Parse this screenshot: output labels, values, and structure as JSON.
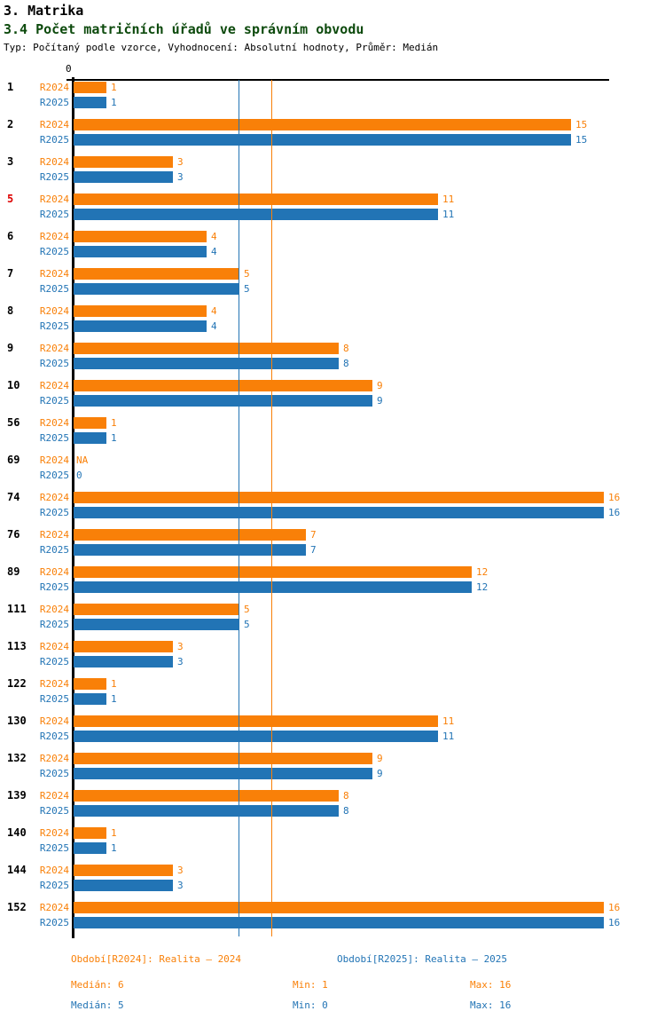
{
  "header": {
    "title": "3. Matrika",
    "subtitle": "3.4 Počet matričních úřadů ve správním obvodu",
    "meta": "Typ: Počítaný podle vzorce, Vyhodnocení: Absolutní hodnoty, Průměr: Medián"
  },
  "chart_data": {
    "type": "bar",
    "orientation": "horizontal",
    "title": "3.4 Počet matričních úřadů ve správním obvodu",
    "x_axis_zero_label": "0",
    "xlim": [
      0,
      16.4
    ],
    "grid": false,
    "na_label": "NA",
    "categories": [
      "1",
      "2",
      "3",
      "5",
      "6",
      "7",
      "8",
      "9",
      "10",
      "56",
      "69",
      "74",
      "76",
      "89",
      "111",
      "113",
      "122",
      "130",
      "132",
      "139",
      "140",
      "144",
      "152"
    ],
    "highlighted_category": "5",
    "highlight_color": "#dd0000",
    "series": [
      {
        "name": "R2024",
        "color": "#f98008",
        "values": [
          1,
          15,
          3,
          11,
          4,
          5,
          4,
          8,
          9,
          1,
          null,
          16,
          7,
          12,
          5,
          3,
          1,
          11,
          9,
          8,
          1,
          3,
          16
        ]
      },
      {
        "name": "R2025",
        "color": "#2274b5",
        "values": [
          1,
          15,
          3,
          11,
          4,
          5,
          4,
          8,
          9,
          1,
          0,
          16,
          7,
          12,
          5,
          3,
          1,
          11,
          9,
          8,
          1,
          3,
          16
        ]
      }
    ],
    "reference_lines": [
      {
        "series": "R2025",
        "label": "Medián R2025",
        "value": 5,
        "color": "#2274b5"
      },
      {
        "series": "R2024",
        "label": "Medián R2024",
        "value": 6,
        "color": "#f98008"
      }
    ]
  },
  "footer": {
    "legend": [
      {
        "label": "Období[R2024]: Realita – 2024",
        "color": "#f98008"
      },
      {
        "label": "Období[R2025]: Realita – 2025",
        "color": "#2274b5"
      }
    ],
    "stats": [
      {
        "median": "Medián: 6",
        "min": "Min: 1",
        "max": "Max: 16",
        "color": "#f98008"
      },
      {
        "median": "Medián: 5",
        "min": "Min: 0",
        "max": "Max: 16",
        "color": "#2274b5"
      }
    ]
  }
}
